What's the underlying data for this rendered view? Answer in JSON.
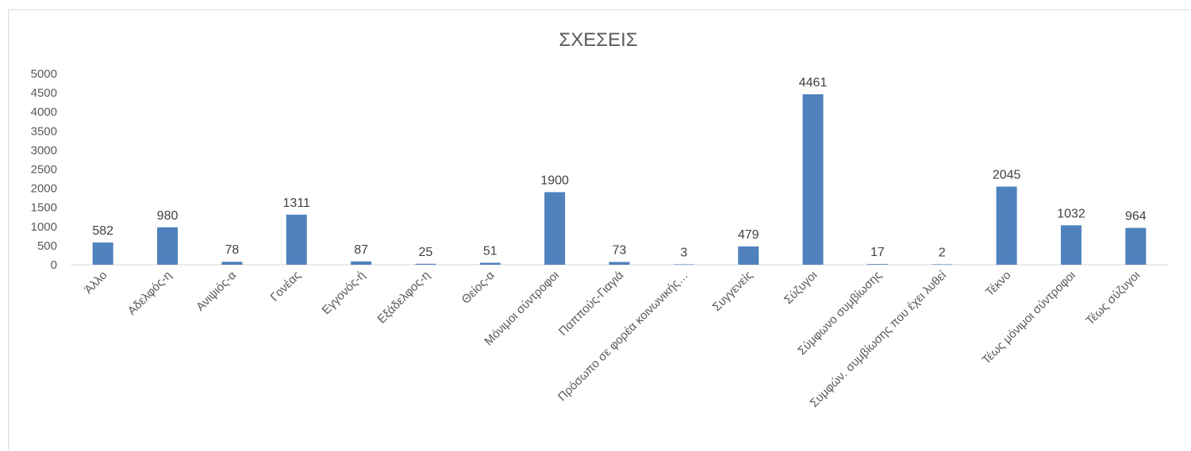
{
  "chart_data": {
    "type": "bar",
    "title": "ΣΧΕΣΕΙΣ",
    "categories": [
      "Άλλο",
      "Αδελφός-η",
      "Ανιψιός-α",
      "Γονέας",
      "Εγγονός-ή",
      "Εξάδελφος-η",
      "Θείος-α",
      "Μόνιμοι σύντροφοι",
      "Παππούς-Γιαγιά",
      "Πρόσωπο σε φορέα κοινωνικής…",
      "Συγγενείς",
      "Σύζυγοι",
      "Σύμφωνο συμβίωσης",
      "Συμφών. συμβίωσης που έχει λυθεί",
      "Τέκνο",
      "Τέως μόνιμοι σύντροφοι",
      "Τέως σύζυγοι"
    ],
    "values": [
      582,
      980,
      78,
      1311,
      87,
      25,
      51,
      1900,
      73,
      3,
      479,
      4461,
      17,
      2,
      2045,
      1032,
      964
    ],
    "ylim": [
      0,
      5000
    ],
    "yticks": [
      "0",
      "500",
      "1000",
      "1500",
      "2000",
      "2500",
      "3000",
      "3500",
      "4000",
      "4500",
      "5000"
    ],
    "bar_color": "#4f81bd",
    "grid": false,
    "legend": "none"
  }
}
